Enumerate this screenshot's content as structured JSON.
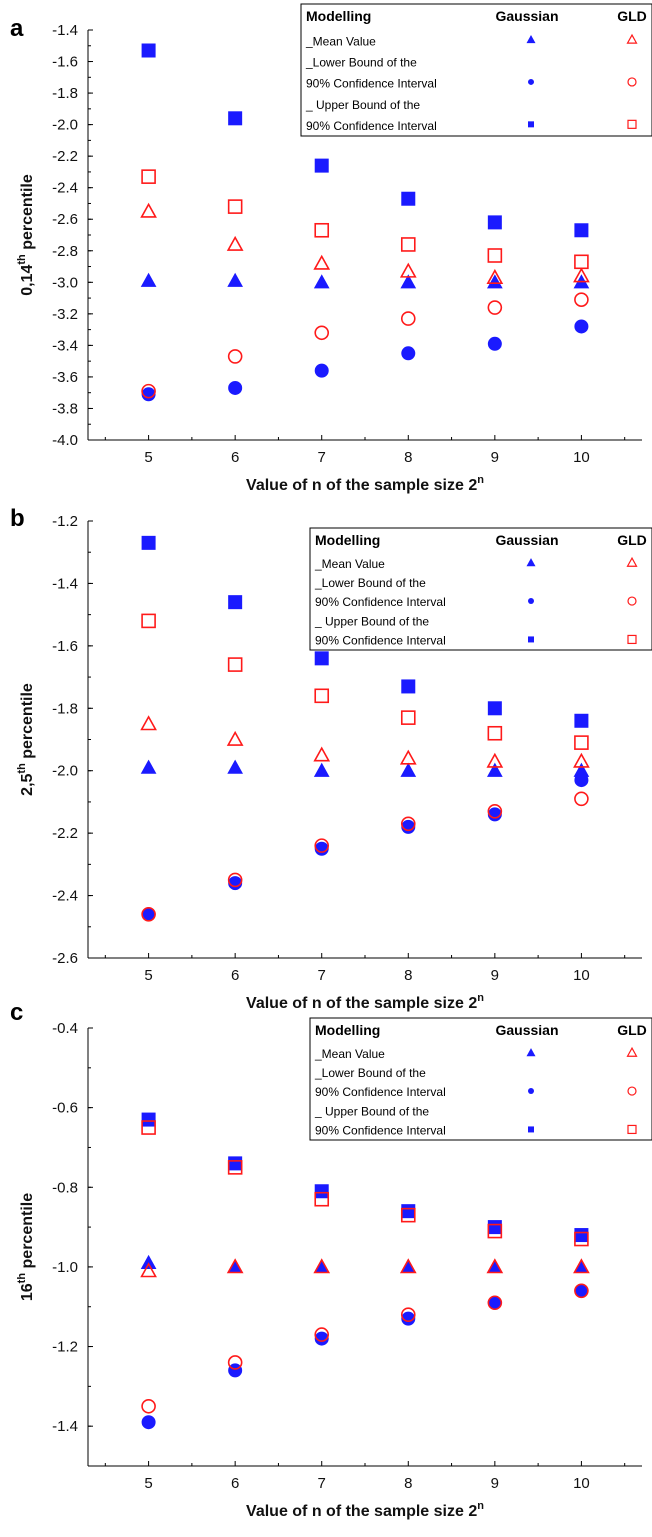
{
  "chart_data": [
    {
      "type": "scatter",
      "panel": "a",
      "ylabel_pre": "0,14",
      "ylabel_sup": "th",
      "ylabel_post": " percentile",
      "xlabel_pre": "Value of n of the sample size 2",
      "xlabel_sup": "n",
      "x": [
        5,
        6,
        7,
        8,
        9,
        10
      ],
      "xlim": [
        4.3,
        10.7
      ],
      "ylim": [
        -4.0,
        -1.4
      ],
      "yticks": [
        -4.0,
        -3.8,
        -3.6,
        -3.4,
        -3.2,
        -3.0,
        -2.8,
        -2.6,
        -2.4,
        -2.2,
        -2.0,
        -1.8,
        -1.6,
        -1.4
      ],
      "ytick_labels": [
        "-4.0",
        "-3.8",
        "-3.6",
        "-3.4",
        "-3.2",
        "-3.0",
        "-2.8",
        "-2.6",
        "-2.4",
        "-2.2",
        "-2.0",
        "-1.8",
        "-1.6",
        "-1.4"
      ],
      "legend": {
        "title": "Modelling",
        "col1": "Gaussian",
        "col2": "GLD",
        "rows": [
          "_Mean Value",
          "_Lower Bound of the",
          "90% Confidence Interval",
          "_ Upper Bound of the",
          "90% Confidence Interval"
        ]
      },
      "series": [
        {
          "model": "Gaussian",
          "stat": "mean",
          "marker": "filled-triangle",
          "color": "#1a1aff",
          "values": [
            -2.99,
            -2.99,
            -3.0,
            -3.0,
            -3.0,
            -3.0
          ]
        },
        {
          "model": "Gaussian",
          "stat": "lower",
          "marker": "filled-circle",
          "color": "#1a1aff",
          "values": [
            -3.71,
            -3.67,
            -3.56,
            -3.45,
            -3.39,
            -3.28
          ]
        },
        {
          "model": "Gaussian",
          "stat": "upper",
          "marker": "filled-square",
          "color": "#1a1aff",
          "values": [
            -1.53,
            -1.96,
            -2.26,
            -2.47,
            -2.62,
            -2.67
          ]
        },
        {
          "model": "GLD",
          "stat": "mean",
          "marker": "open-triangle",
          "color": "#ff1a1a",
          "values": [
            -2.55,
            -2.76,
            -2.88,
            -2.93,
            -2.97,
            -2.96
          ]
        },
        {
          "model": "GLD",
          "stat": "lower",
          "marker": "open-circle",
          "color": "#ff1a1a",
          "values": [
            -3.69,
            -3.47,
            -3.32,
            -3.23,
            -3.16,
            -3.11
          ]
        },
        {
          "model": "GLD",
          "stat": "upper",
          "marker": "open-square",
          "color": "#ff1a1a",
          "values": [
            -2.33,
            -2.52,
            -2.67,
            -2.76,
            -2.83,
            -2.87
          ]
        }
      ]
    },
    {
      "type": "scatter",
      "panel": "b",
      "ylabel_pre": "2,5",
      "ylabel_sup": "th",
      "ylabel_post": " percentile",
      "xlabel_pre": "Value of n of the sample size 2",
      "xlabel_sup": "n",
      "x": [
        5,
        6,
        7,
        8,
        9,
        10
      ],
      "xlim": [
        4.3,
        10.7
      ],
      "ylim": [
        -2.6,
        -1.2
      ],
      "yticks": [
        -2.6,
        -2.4,
        -2.2,
        -2.0,
        -1.8,
        -1.6,
        -1.4,
        -1.2
      ],
      "ytick_labels": [
        "-2.6",
        "-2.4",
        "-2.2",
        "-2.0",
        "-1.8",
        "-1.6",
        "-1.4",
        "-1.2"
      ],
      "legend": {
        "title": "Modelling",
        "col1": "Gaussian",
        "col2": "GLD",
        "rows": [
          "_Mean Value",
          "_Lower Bound of the",
          "90% Confidence Interval",
          "_ Upper Bound of the",
          "90% Confidence Interval"
        ]
      },
      "series": [
        {
          "model": "Gaussian",
          "stat": "mean",
          "marker": "filled-triangle",
          "color": "#1a1aff",
          "values": [
            -1.99,
            -1.99,
            -2.0,
            -2.0,
            -2.0,
            -2.0
          ]
        },
        {
          "model": "Gaussian",
          "stat": "lower",
          "marker": "filled-circle",
          "color": "#1a1aff",
          "values": [
            -2.46,
            -2.36,
            -2.25,
            -2.18,
            -2.14,
            -2.03
          ]
        },
        {
          "model": "Gaussian",
          "stat": "upper",
          "marker": "filled-square",
          "color": "#1a1aff",
          "values": [
            -1.27,
            -1.46,
            -1.64,
            -1.73,
            -1.8,
            -1.84
          ]
        },
        {
          "model": "GLD",
          "stat": "mean",
          "marker": "open-triangle",
          "color": "#ff1a1a",
          "values": [
            -1.85,
            -1.9,
            -1.95,
            -1.96,
            -1.97,
            -1.97
          ]
        },
        {
          "model": "GLD",
          "stat": "lower",
          "marker": "open-circle",
          "color": "#ff1a1a",
          "values": [
            -2.46,
            -2.35,
            -2.24,
            -2.17,
            -2.13,
            -2.09
          ]
        },
        {
          "model": "GLD",
          "stat": "upper",
          "marker": "open-square",
          "color": "#ff1a1a",
          "values": [
            -1.52,
            -1.66,
            -1.76,
            -1.83,
            -1.88,
            -1.91
          ]
        }
      ]
    },
    {
      "type": "scatter",
      "panel": "c",
      "ylabel_pre": "16",
      "ylabel_sup": "th",
      "ylabel_post": " percentile",
      "xlabel_pre": "Value of n of the sample size 2",
      "xlabel_sup": "n",
      "x": [
        5,
        6,
        7,
        8,
        9,
        10
      ],
      "xlim": [
        4.3,
        10.7
      ],
      "ylim": [
        -1.5,
        -0.4
      ],
      "yticks": [
        -1.4,
        -1.2,
        -1.0,
        -0.8,
        -0.6,
        -0.4
      ],
      "ytick_labels": [
        "-1.4",
        "-1.2",
        "-1.0",
        "-0.8",
        "-0.6",
        "-0.4"
      ],
      "legend": {
        "title": "Modelling",
        "col1": "Gaussian",
        "col2": "GLD",
        "rows": [
          "_Mean Value",
          "_Lower Bound of the",
          "90% Confidence Interval",
          "_ Upper Bound of the",
          "90% Confidence Interval"
        ]
      },
      "series": [
        {
          "model": "Gaussian",
          "stat": "mean",
          "marker": "filled-triangle",
          "color": "#1a1aff",
          "values": [
            -0.99,
            -1.0,
            -1.0,
            -1.0,
            -1.0,
            -1.0
          ]
        },
        {
          "model": "Gaussian",
          "stat": "lower",
          "marker": "filled-circle",
          "color": "#1a1aff",
          "values": [
            -1.39,
            -1.26,
            -1.18,
            -1.13,
            -1.09,
            -1.06
          ]
        },
        {
          "model": "Gaussian",
          "stat": "upper",
          "marker": "filled-square",
          "color": "#1a1aff",
          "values": [
            -0.63,
            -0.74,
            -0.81,
            -0.86,
            -0.9,
            -0.92
          ]
        },
        {
          "model": "GLD",
          "stat": "mean",
          "marker": "open-triangle",
          "color": "#ff1a1a",
          "values": [
            -1.01,
            -1.0,
            -1.0,
            -1.0,
            -1.0,
            -1.0
          ]
        },
        {
          "model": "GLD",
          "stat": "lower",
          "marker": "open-circle",
          "color": "#ff1a1a",
          "values": [
            -1.35,
            -1.24,
            -1.17,
            -1.12,
            -1.09,
            -1.06
          ]
        },
        {
          "model": "GLD",
          "stat": "upper",
          "marker": "open-square",
          "color": "#ff1a1a",
          "values": [
            -0.65,
            -0.75,
            -0.83,
            -0.87,
            -0.91,
            -0.93
          ]
        }
      ]
    }
  ]
}
